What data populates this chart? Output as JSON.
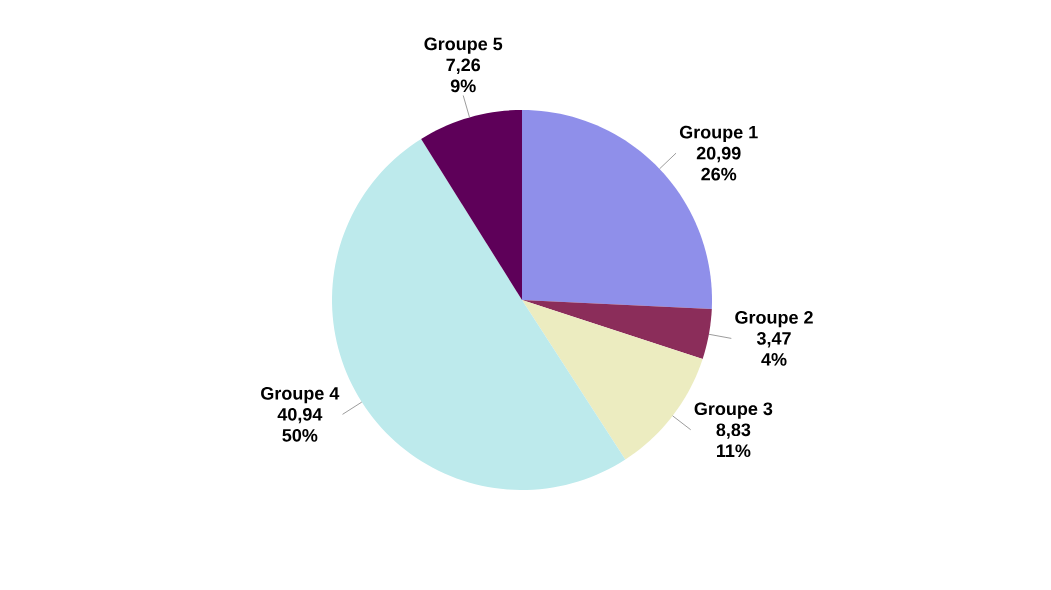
{
  "chart_data": {
    "type": "pie",
    "categories": [
      "Groupe 1",
      "Groupe 2",
      "Groupe 3",
      "Groupe 4",
      "Groupe 5"
    ],
    "values": [
      20.99,
      3.47,
      8.83,
      40.94,
      7.26
    ],
    "value_labels": [
      "20,99",
      "3,47",
      "8,83",
      "40,94",
      "7,26"
    ],
    "annotations": [
      "26%",
      "4%",
      "11%",
      "50%",
      "9%"
    ],
    "colors": [
      "#8f8fea",
      "#8b2d5a",
      "#ececc0",
      "#bdeaec",
      "#5e0059"
    ]
  }
}
